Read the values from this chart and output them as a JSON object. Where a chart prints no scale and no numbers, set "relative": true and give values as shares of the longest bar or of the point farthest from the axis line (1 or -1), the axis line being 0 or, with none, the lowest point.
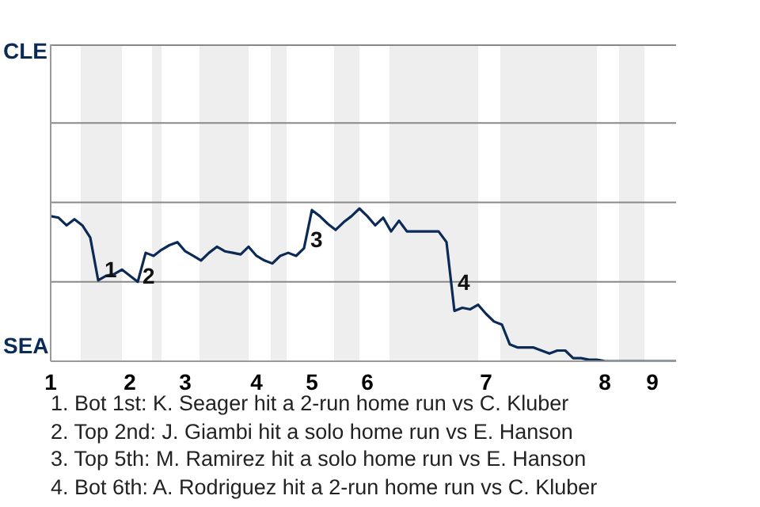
{
  "chart_data": {
    "type": "line",
    "relative": true,
    "categories": [
      "1",
      null,
      null,
      null,
      null,
      null,
      null,
      null,
      null,
      null,
      "2",
      null,
      null,
      null,
      null,
      null,
      null,
      "3",
      null,
      null,
      null,
      null,
      null,
      null,
      null,
      null,
      "4",
      null,
      null,
      null,
      null,
      null,
      null,
      "5",
      null,
      null,
      null,
      null,
      null,
      null,
      "6",
      null,
      null,
      null,
      null,
      null,
      null,
      null,
      null,
      null,
      null,
      null,
      null,
      null,
      null,
      "7",
      null,
      null,
      null,
      null,
      null,
      null,
      null,
      null,
      null,
      null,
      null,
      null,
      null,
      null,
      "8",
      null,
      null,
      null,
      null,
      null,
      "9",
      null,
      null,
      null
    ],
    "series": [
      {
        "color": "#0b2a55",
        "values": [
          0.95,
          0.94,
          0.89,
          0.93,
          0.89,
          0.81,
          0.53,
          0.56,
          0.57,
          0.6,
          0.56,
          0.52,
          0.71,
          0.69,
          0.73,
          0.76,
          0.78,
          0.72,
          0.69,
          0.66,
          0.71,
          0.75,
          0.72,
          0.71,
          0.7,
          0.75,
          0.69,
          0.66,
          0.64,
          0.69,
          0.71,
          0.69,
          0.74,
          0.99,
          0.95,
          0.9,
          0.86,
          0.91,
          0.95,
          1,
          0.95,
          0.89,
          0.94,
          0.85,
          0.92,
          0.85,
          0.85,
          0.85,
          0.85,
          0.85,
          0.78,
          0.33,
          0.35,
          0.34,
          0.37,
          0.31,
          0.26,
          0.24,
          0.11,
          0.09,
          0.09,
          0.09,
          0.07,
          0.05,
          0.07,
          0.07,
          0.02,
          0.02,
          0.01,
          0.01,
          0,
          0,
          0,
          0,
          0,
          0,
          0,
          0,
          0,
          0
        ]
      }
    ],
    "marker": "none",
    "line_style": "solid",
    "ref_lines": [
      {
        "axis": "y",
        "value": 0.52,
        "color": "#888888"
      },
      {
        "axis": "y",
        "value": 1.04,
        "color": "#888888"
      },
      {
        "axis": "y",
        "value": 1.56,
        "color": "#888888"
      },
      {
        "axis": "y",
        "value": 2.07,
        "color": "#888888"
      }
    ],
    "annotations": [
      "CLE",
      "SEA",
      "1",
      "2",
      "3",
      "4",
      "1. Bot 1st: K. Seager hit a 2-run home run vs C. Kluber",
      "2. Top 2nd: J. Giambi hit a solo home run vs E. Hanson",
      "3. Top 5th: M. Ramirez hit a solo home run vs E. Hanson",
      "4. Bot 6th: A. Rodriguez hit a 2-run home run vs C. Kluber"
    ]
  }
}
